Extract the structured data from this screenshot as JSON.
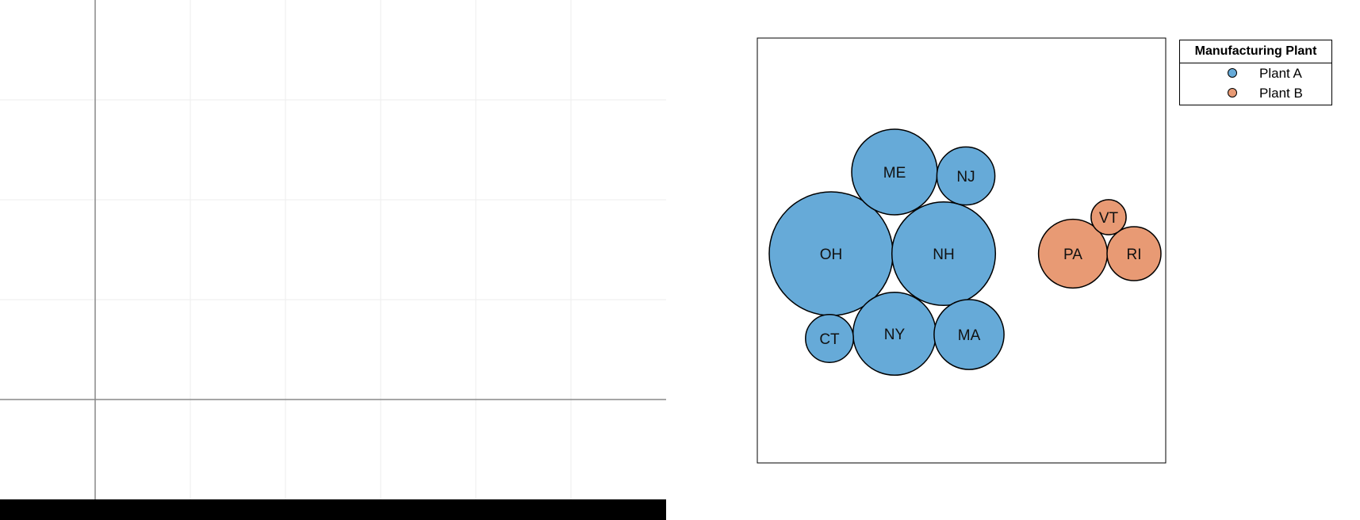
{
  "chart_data": {
    "type": "packed-bubble",
    "legend": {
      "title": "Manufacturing Plant",
      "placement": "top-right-outside",
      "entries": [
        {
          "label": "Plant A",
          "color": "#66aad8"
        },
        {
          "label": "Plant B",
          "color": "#e89a74"
        }
      ]
    },
    "series": [
      {
        "name": "Plant A",
        "color": "#66aad8",
        "points": [
          {
            "label": "OH",
            "value": 100
          },
          {
            "label": "NH",
            "value": 70
          },
          {
            "label": "ME",
            "value": 48
          },
          {
            "label": "NY",
            "value": 45
          },
          {
            "label": "MA",
            "value": 32
          },
          {
            "label": "NJ",
            "value": 22
          },
          {
            "label": "CT",
            "value": 15
          }
        ]
      },
      {
        "name": "Plant B",
        "color": "#e89a74",
        "points": [
          {
            "label": "PA",
            "value": 31
          },
          {
            "label": "RI",
            "value": 19
          },
          {
            "label": "VT",
            "value": 8
          }
        ]
      }
    ]
  }
}
